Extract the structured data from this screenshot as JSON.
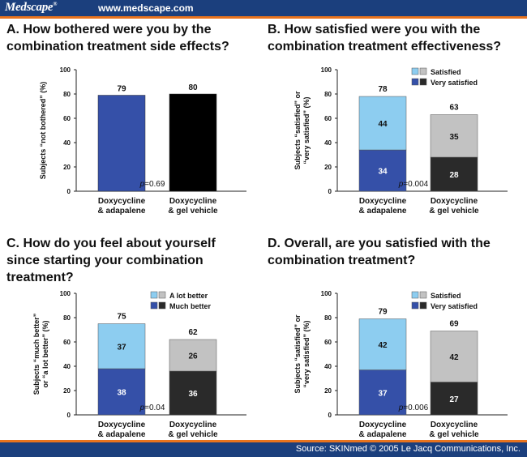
{
  "header": {
    "brand": "Medscape",
    "brand_mark": "®",
    "url": "www.medscape.com"
  },
  "footer": {
    "source": "Source: SKINmed © 2005 Le Jacq Communications, Inc."
  },
  "colors": {
    "header_blue": "#1b3f7d",
    "accent_orange": "#e8731e",
    "bar_blue": "#3550a8",
    "bar_light_blue": "#8dcdf0",
    "bar_black": "#000000",
    "bar_dark": "#2a2a2a",
    "bar_gray": "#c2c2c2"
  },
  "panels": [
    {
      "title": "A. How bothered were you by the\n    combination treatment side effects?",
      "ylabel_lines": [
        "Subjects “not bothered”  (%)"
      ],
      "pvalue_prefix": "p",
      "pvalue_rest": "=0.69"
    },
    {
      "title": "B. How satisfied were you with the\n    combination treatment effectiveness?",
      "ylabel_lines": [
        "Subjects “satisfied” or",
        "“very satisfied” (%)"
      ],
      "pvalue_prefix": "p",
      "pvalue_rest": "=0.004"
    },
    {
      "title": "C. How do you feel about yourself\n    since starting your combination\n    treatment?",
      "ylabel_lines": [
        "Subjects “much better”",
        "or “a lot better” (%)"
      ],
      "pvalue_prefix": "p",
      "pvalue_rest": "=0.04"
    },
    {
      "title": "D. Overall, are you satisfied with the\n    combination treatment?",
      "ylabel_lines": [
        "Subjects “satisfied” or",
        "“very satisfied” (%)"
      ],
      "pvalue_prefix": "p",
      "pvalue_rest": "=0.006"
    }
  ],
  "chart_data": [
    {
      "type": "bar",
      "categories": [
        [
          "Doxycycline",
          "& adapalene"
        ],
        [
          "Doxycycline",
          "& gel vehicle"
        ]
      ],
      "values": [
        79,
        80
      ],
      "bar_colors": [
        "#3550a8",
        "#000000"
      ],
      "ylim": [
        0,
        100
      ],
      "yticks": [
        0,
        20,
        40,
        60,
        80,
        100
      ],
      "ylabel": "Subjects “not bothered”  (%)",
      "legend": null
    },
    {
      "type": "bar",
      "stacked": true,
      "categories": [
        [
          "Doxycycline",
          "& adapalene"
        ],
        [
          "Doxycycline",
          "& gel vehicle"
        ]
      ],
      "series": [
        {
          "name": "Very satisfied",
          "values": [
            34,
            28
          ],
          "colors": [
            "#3550a8",
            "#2a2a2a"
          ]
        },
        {
          "name": "Satisfied",
          "values": [
            44,
            35
          ],
          "colors": [
            "#8dcdf0",
            "#c2c2c2"
          ]
        }
      ],
      "totals": [
        78,
        63
      ],
      "ylim": [
        0,
        100
      ],
      "yticks": [
        0,
        20,
        40,
        60,
        80,
        100
      ],
      "ylabel": "Subjects “satisfied” or “very satisfied” (%)",
      "legend": [
        {
          "label": "Satisfied",
          "colors": [
            "#8dcdf0",
            "#c2c2c2"
          ]
        },
        {
          "label": "Very satisfied",
          "colors": [
            "#3550a8",
            "#2a2a2a"
          ]
        }
      ]
    },
    {
      "type": "bar",
      "stacked": true,
      "categories": [
        [
          "Doxycycline",
          "& adapalene"
        ],
        [
          "Doxycycline",
          "& gel vehicle"
        ]
      ],
      "series": [
        {
          "name": "Much better",
          "values": [
            38,
            36
          ],
          "colors": [
            "#3550a8",
            "#2a2a2a"
          ]
        },
        {
          "name": "A lot better",
          "values": [
            37,
            26
          ],
          "colors": [
            "#8dcdf0",
            "#c2c2c2"
          ]
        }
      ],
      "totals": [
        75,
        62
      ],
      "ylim": [
        0,
        100
      ],
      "yticks": [
        0,
        20,
        40,
        60,
        80,
        100
      ],
      "ylabel": "Subjects “much better” or “a lot better” (%)",
      "legend": [
        {
          "label": "A lot better",
          "colors": [
            "#8dcdf0",
            "#c2c2c2"
          ]
        },
        {
          "label": "Much better",
          "colors": [
            "#3550a8",
            "#2a2a2a"
          ]
        }
      ]
    },
    {
      "type": "bar",
      "stacked": true,
      "categories": [
        [
          "Doxycycline",
          "& adapalene"
        ],
        [
          "Doxycycline",
          "& gel vehicle"
        ]
      ],
      "series": [
        {
          "name": "Very satisfied",
          "values": [
            37,
            27
          ],
          "colors": [
            "#3550a8",
            "#2a2a2a"
          ]
        },
        {
          "name": "Satisfied",
          "values": [
            42,
            42
          ],
          "colors": [
            "#8dcdf0",
            "#c2c2c2"
          ]
        }
      ],
      "totals": [
        79,
        69
      ],
      "ylim": [
        0,
        100
      ],
      "yticks": [
        0,
        20,
        40,
        60,
        80,
        100
      ],
      "ylabel": "Subjects “satisfied” or “very satisfied” (%)",
      "legend": [
        {
          "label": "Satisfied",
          "colors": [
            "#8dcdf0",
            "#c2c2c2"
          ]
        },
        {
          "label": "Very satisfied",
          "colors": [
            "#3550a8",
            "#2a2a2a"
          ]
        }
      ]
    }
  ]
}
